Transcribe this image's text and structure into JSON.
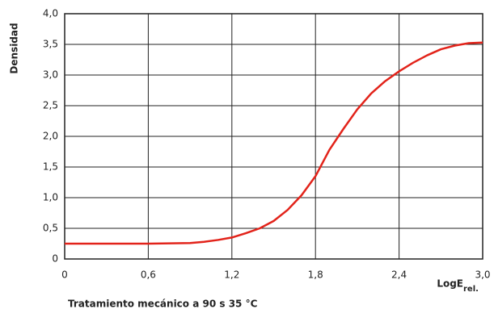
{
  "chart_data": {
    "type": "line",
    "y_label": "Densidad",
    "x_label": "LogE",
    "x_label_subscript": "rel.",
    "caption": "Tratamiento mecánico a 90 s 35 °C",
    "x": [
      0,
      0.3,
      0.6,
      0.9,
      1.0,
      1.1,
      1.2,
      1.3,
      1.4,
      1.5,
      1.6,
      1.7,
      1.8,
      1.9,
      2.0,
      2.1,
      2.2,
      2.3,
      2.4,
      2.5,
      2.6,
      2.7,
      2.8,
      2.9,
      3.0
    ],
    "series": [
      {
        "name": "Densidad",
        "color": "#e2231a",
        "values": [
          0.25,
          0.25,
          0.25,
          0.26,
          0.28,
          0.31,
          0.35,
          0.42,
          0.5,
          0.62,
          0.8,
          1.04,
          1.35,
          1.78,
          2.12,
          2.44,
          2.7,
          2.9,
          3.06,
          3.2,
          3.32,
          3.42,
          3.48,
          3.52,
          3.53
        ]
      }
    ],
    "xlim": [
      0,
      3.0
    ],
    "xticks": [
      0,
      {
        "value": 0.6,
        "label": "0,6"
      },
      {
        "value": 1.2,
        "label": "1,2"
      },
      {
        "value": 1.8,
        "label": "1,8"
      },
      {
        "value": 2.4,
        "label": "2,4"
      },
      {
        "value": 3.0,
        "label": "3,0"
      }
    ],
    "ylim": [
      0,
      4.0
    ],
    "yticks": [
      0,
      {
        "value": 0.5,
        "label": "0,5"
      },
      {
        "value": 1.0,
        "label": "1,0"
      },
      {
        "value": 1.5,
        "label": "1,5"
      },
      {
        "value": 2.0,
        "label": "2,0"
      },
      {
        "value": 2.5,
        "label": "2,5"
      },
      {
        "value": 3.0,
        "label": "3,0"
      },
      {
        "value": 3.5,
        "label": "3,5"
      },
      {
        "value": 4.0,
        "label": "4,0"
      }
    ],
    "grid": true
  }
}
